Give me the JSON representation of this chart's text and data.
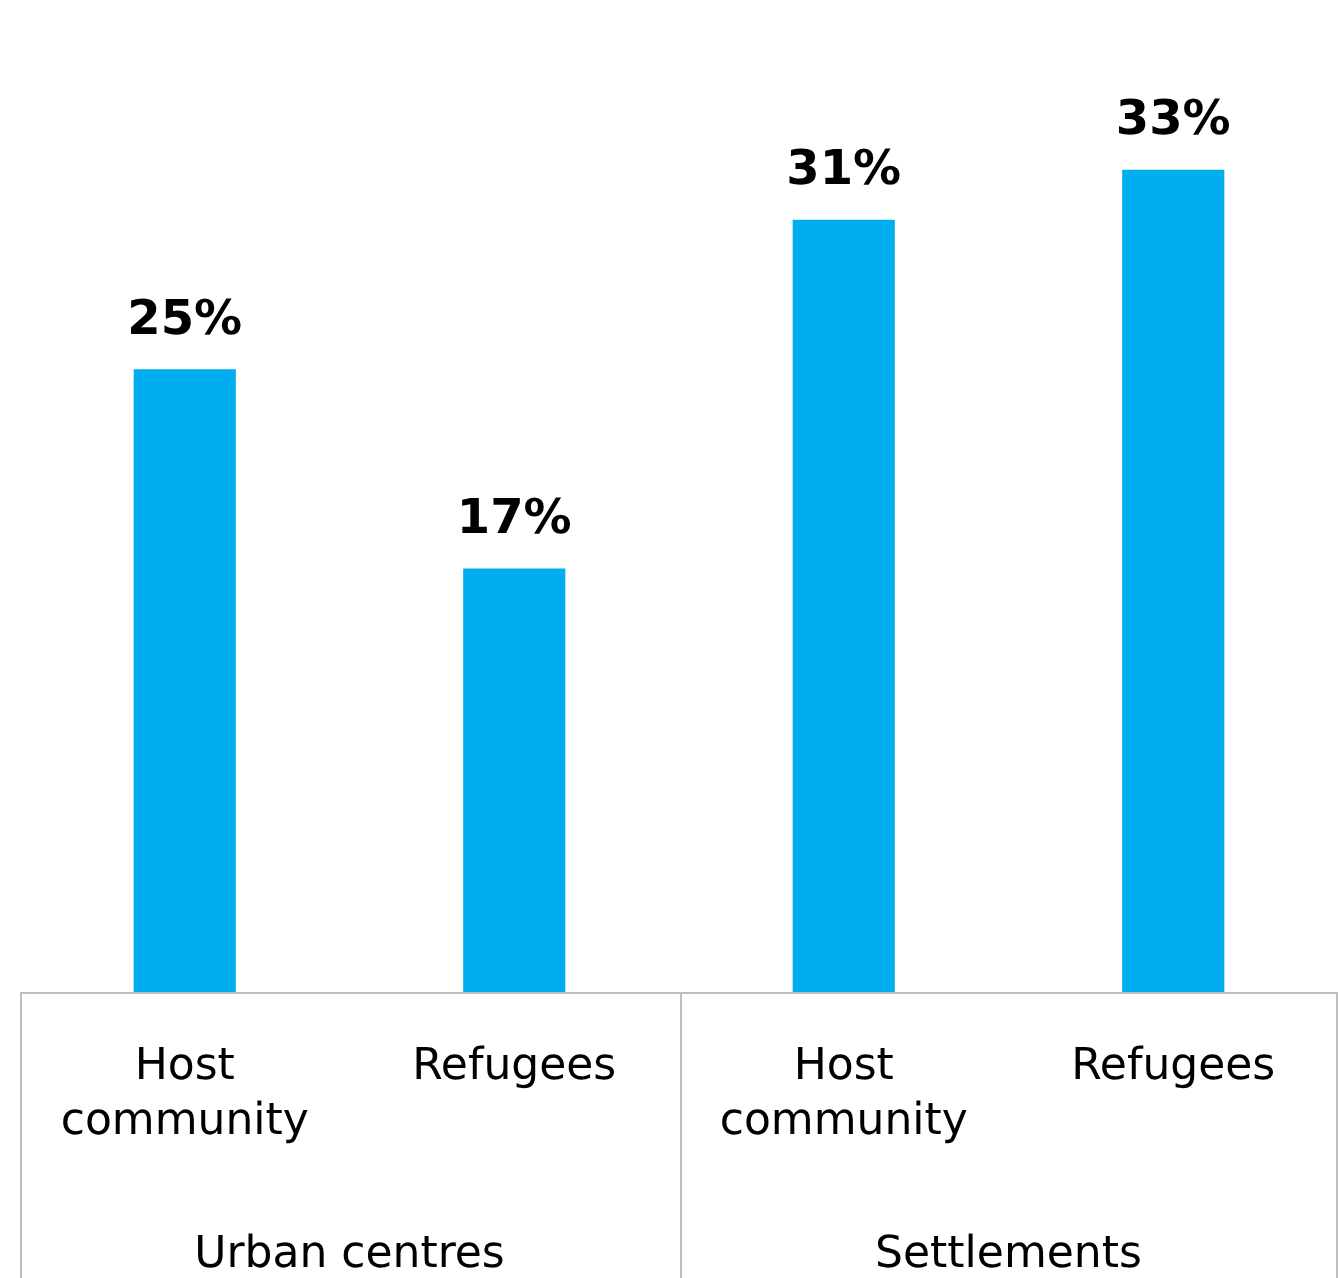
{
  "chart_data": {
    "type": "bar",
    "categories": [
      "Host community",
      "Refugees",
      "Host community",
      "Refugees"
    ],
    "values": [
      25,
      17,
      31,
      33
    ],
    "value_labels": [
      "25%",
      "17%",
      "31%",
      "33%"
    ],
    "color": "#00aeef",
    "grid": false,
    "legend": false,
    "annotations": [
      "Urban centres",
      "Settlements"
    ]
  }
}
